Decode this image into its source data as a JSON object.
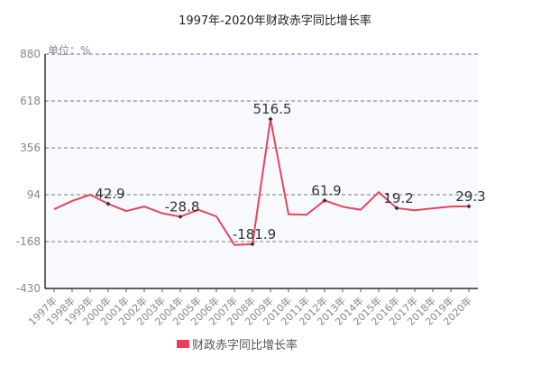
{
  "chart_data": {
    "type": "line",
    "title": "1997年-2020年财政赤字同比增长率",
    "unit_label": "单位：%",
    "xlabel": "",
    "ylabel": "单位：%",
    "ylim": [
      -430,
      880
    ],
    "yticks": [
      880,
      618,
      356,
      94,
      -168,
      -430
    ],
    "grid": true,
    "legend_position": "bottom",
    "categories": [
      "1997年",
      "1998年",
      "1999年",
      "2000年",
      "2001年",
      "2002年",
      "2003年",
      "2004年",
      "2005年",
      "2006年",
      "2007年",
      "2008年",
      "2009年",
      "2010年",
      "2011年",
      "2012年",
      "2013年",
      "2014年",
      "2015年",
      "2016年",
      "2017年",
      "2018年",
      "2019年",
      "2020年"
    ],
    "series": [
      {
        "name": "财政赤字同比增长率",
        "color": "#e8445a",
        "values": [
          13,
          59,
          94,
          42.9,
          3,
          28,
          -10,
          -28.8,
          10,
          -27,
          -187,
          -181.9,
          516.5,
          -15,
          -18,
          61.9,
          27,
          10,
          108,
          19.2,
          7,
          18,
          28,
          29.3
        ]
      }
    ],
    "annotations": [
      {
        "category": "2000年",
        "label": "42.9"
      },
      {
        "category": "2004年",
        "label": "-28.8"
      },
      {
        "category": "2008年",
        "label": "-181.9"
      },
      {
        "category": "2009年",
        "label": "516.5"
      },
      {
        "category": "2012年",
        "label": "61.9"
      },
      {
        "category": "2016年",
        "label": "19.2"
      },
      {
        "category": "2020年",
        "label": "29.3"
      }
    ]
  },
  "colors": {
    "line": "#e8445a",
    "legend_swatch": "#f03c5a",
    "plot_background": "#f8f9ff",
    "grid": "#777777",
    "axis": "#000000",
    "tick_label": "#888888",
    "marker": "#333333"
  }
}
